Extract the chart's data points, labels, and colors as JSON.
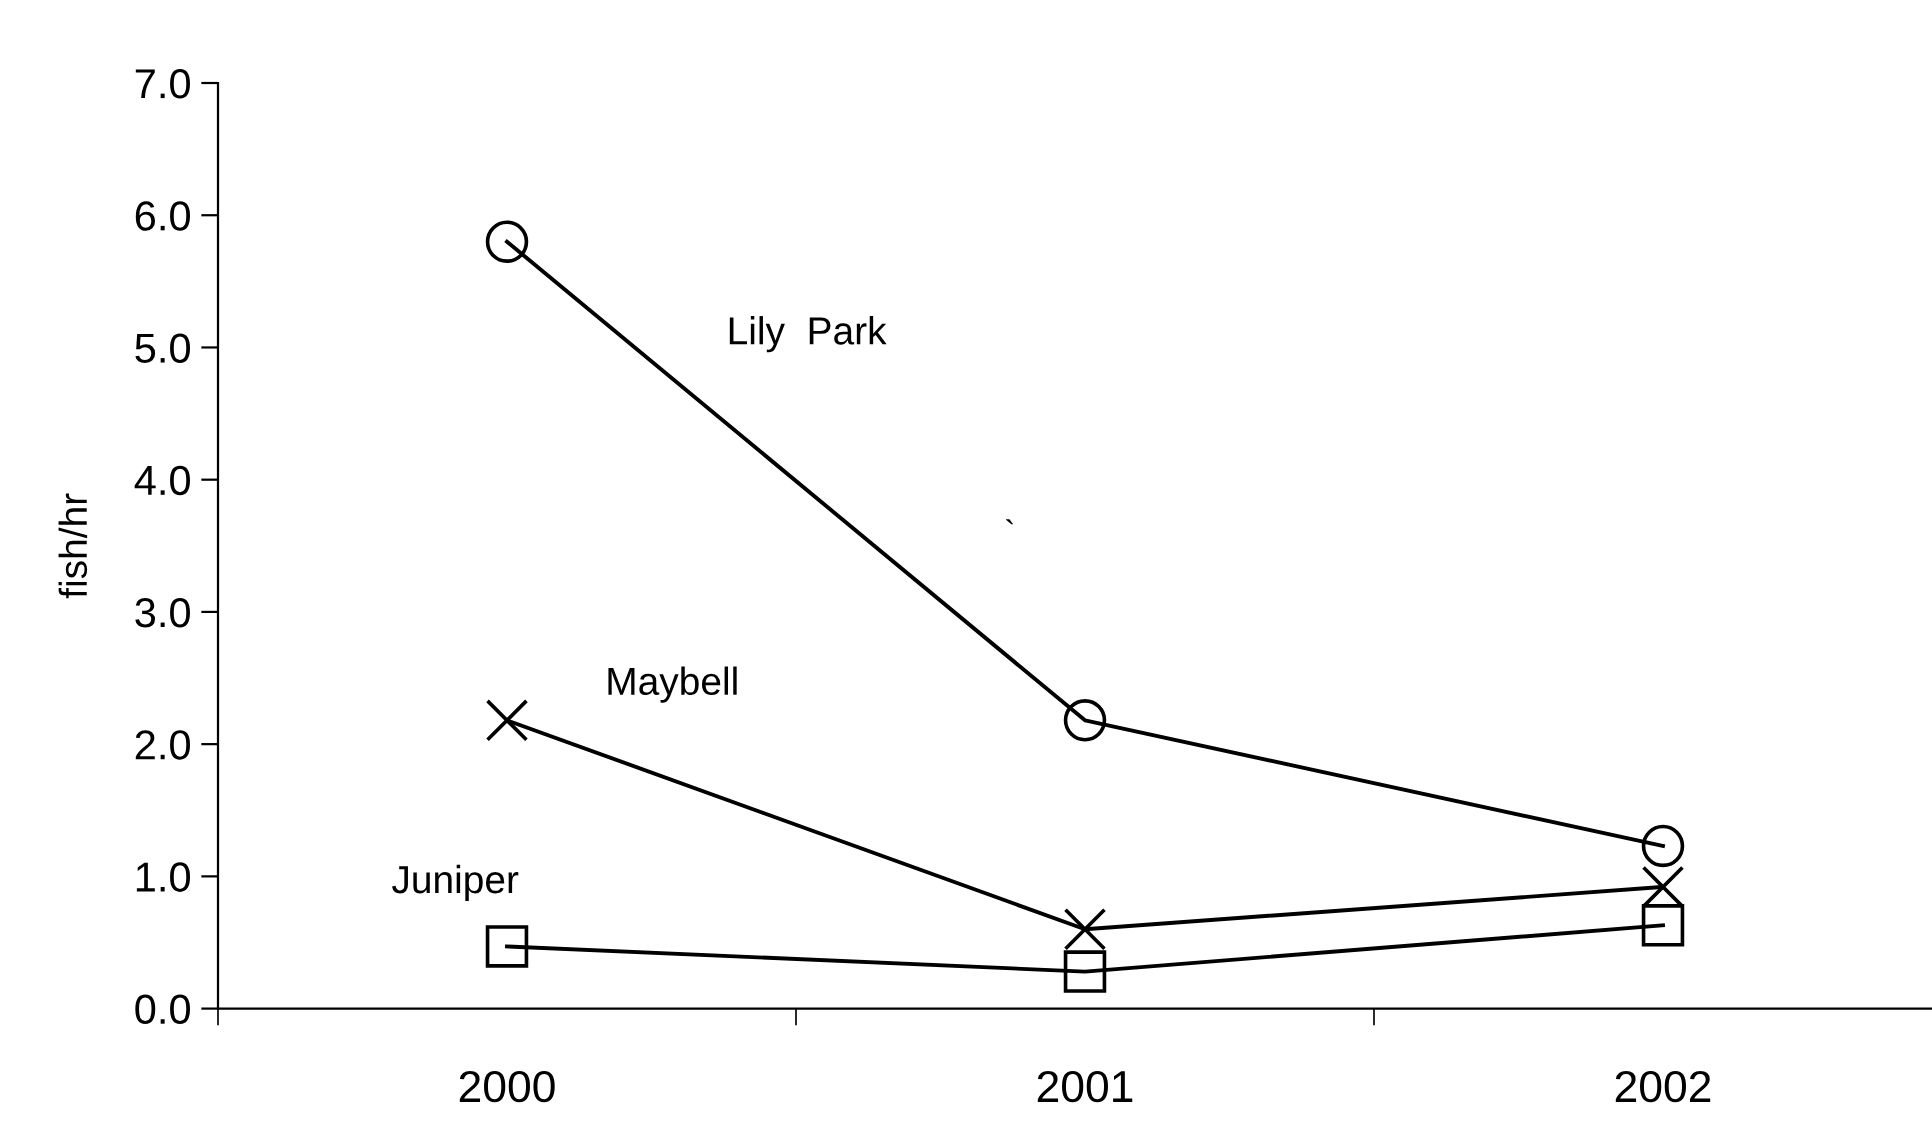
{
  "chart_data": {
    "type": "line",
    "ylabel": "fish/hr",
    "categories": [
      "2000",
      "2001",
      "2002"
    ],
    "ylim": [
      0,
      7
    ],
    "yticks": [
      {
        "value": 0,
        "label": "0.0"
      },
      {
        "value": 1,
        "label": "1.0"
      },
      {
        "value": 2,
        "label": "2.0"
      },
      {
        "value": 3,
        "label": "3.0"
      },
      {
        "value": 4,
        "label": "4.0"
      },
      {
        "value": 5,
        "label": "5.0"
      },
      {
        "value": 6,
        "label": "6.0"
      },
      {
        "value": 7,
        "label": "7.0"
      }
    ],
    "grid": false,
    "legend": false,
    "line_style": "solid",
    "series": [
      {
        "name": "Lily  Park",
        "color": "#000000",
        "marker": "circle",
        "values": [
          5.8,
          2.18,
          1.23
        ]
      },
      {
        "name": "Maybell",
        "color": "#000000",
        "marker": "cross",
        "values": [
          2.18,
          0.6,
          0.92
        ]
      },
      {
        "name": "Juniper",
        "color": "#000000",
        "marker": "square",
        "values": [
          0.47,
          0.28,
          0.63
        ]
      }
    ],
    "annotations": [
      "`"
    ]
  }
}
